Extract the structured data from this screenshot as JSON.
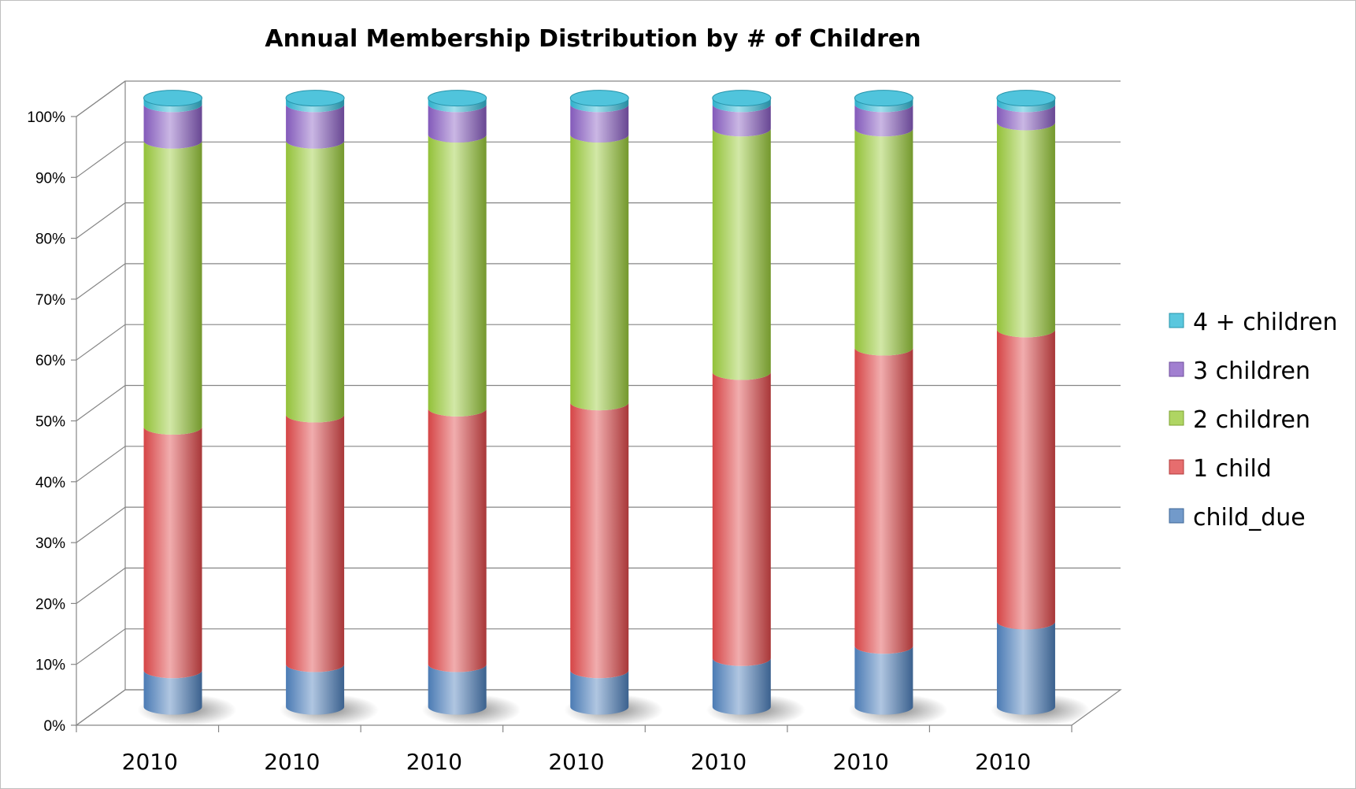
{
  "chart_data": {
    "type": "bar",
    "stacked": true,
    "percent": true,
    "three_d": true,
    "title": "Annual Membership Distribution by # of Children",
    "xlabel": "",
    "ylabel": "",
    "ylim": [
      0,
      100
    ],
    "yticks": [
      "0%",
      "10%",
      "20%",
      "30%",
      "40%",
      "50%",
      "60%",
      "70%",
      "80%",
      "90%",
      "100%"
    ],
    "categories": [
      "2010",
      "2010",
      "2010",
      "2010",
      "2010",
      "2010",
      "2010"
    ],
    "legend_position": "right",
    "grid": true,
    "series": [
      {
        "name": "child_due",
        "color": "#4f81bd",
        "values": [
          6,
          7,
          7,
          6,
          8,
          10,
          14
        ]
      },
      {
        "name": "1 child",
        "color": "#e0494a",
        "values": [
          40,
          41,
          42,
          44,
          47,
          49,
          48
        ]
      },
      {
        "name": "2 children",
        "color": "#9bcb3c",
        "values": [
          47,
          45,
          45,
          44,
          40,
          36,
          34
        ]
      },
      {
        "name": "3 children",
        "color": "#8a5fc4",
        "values": [
          6,
          6,
          5,
          5,
          4,
          4,
          3
        ]
      },
      {
        "name": "4 + children",
        "color": "#31b9d6",
        "values": [
          1,
          1,
          1,
          1,
          1,
          1,
          1
        ]
      }
    ]
  }
}
